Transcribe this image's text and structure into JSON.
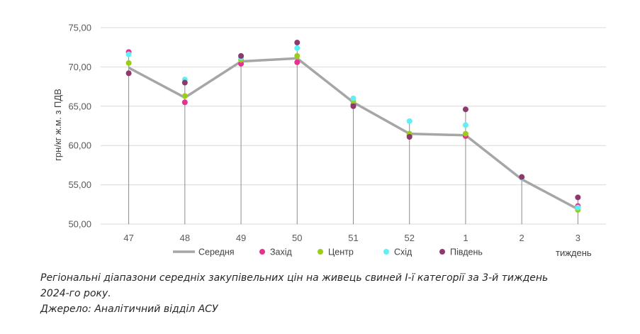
{
  "chart_data": {
    "type": "line",
    "categories": [
      "47",
      "48",
      "49",
      "50",
      "51",
      "52",
      "1",
      "2",
      "3"
    ],
    "ylabel": "грн/кг ж.м. з ПДВ",
    "xlabel": "тиждень",
    "ylim": [
      50,
      75
    ],
    "yticks": [
      "50,00",
      "55,00",
      "60,00",
      "65,00",
      "70,00",
      "75,00"
    ],
    "grid": true,
    "legend_position": "bottom",
    "series": [
      {
        "name": "Середня",
        "kind": "line",
        "color": "#a6a6a6",
        "values": [
          69.9,
          66.1,
          70.7,
          71.1,
          65.5,
          61.5,
          61.3,
          55.7,
          51.9
        ]
      },
      {
        "name": "Захід",
        "kind": "marker",
        "color": "#e8308e",
        "values": [
          71.9,
          65.5,
          70.4,
          70.6,
          65.2,
          61.3,
          61.2,
          55.9,
          52.3
        ]
      },
      {
        "name": "Центр",
        "kind": "marker",
        "color": "#9acd1a",
        "values": [
          70.5,
          66.3,
          70.9,
          71.4,
          65.6,
          61.5,
          61.5,
          55.9,
          51.8
        ]
      },
      {
        "name": "Схід",
        "kind": "marker",
        "color": "#5ef0f5",
        "values": [
          71.6,
          68.4,
          71.2,
          72.4,
          66.0,
          63.1,
          62.6,
          55.9,
          52.1
        ]
      },
      {
        "name": "Південь",
        "kind": "marker",
        "color": "#8c3a6e",
        "values": [
          69.2,
          68.0,
          71.4,
          73.1,
          65.0,
          61.1,
          64.6,
          56.0,
          53.4
        ]
      }
    ]
  },
  "caption": {
    "line1": "Регіональні діапазони середніх закупівельних цін на живець свиней І-ї категорії за 3-й тиждень",
    "line2": "2024-го року.",
    "line3": "Джерело: Аналітичний відділ АСУ"
  }
}
